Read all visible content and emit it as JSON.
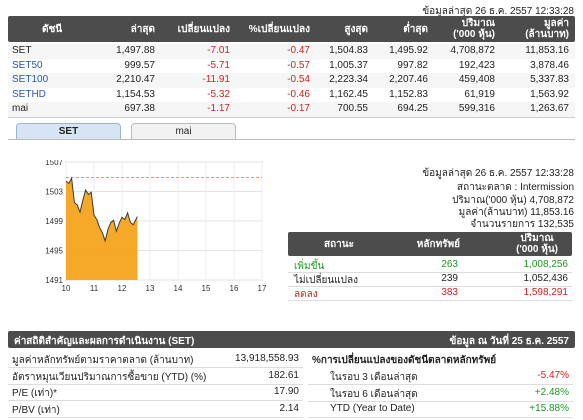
{
  "top_timestamp": "ข้อมูลล่าสุด 26 ธ.ค. 2557 12:33:28",
  "index_table": {
    "headers": [
      "ดัชนี",
      "ล่าสุด",
      "เปลี่ยนแปลง",
      "%เปลี่ยนแปลง",
      "สูงสุด",
      "ต่ำสุด",
      "ปริมาณ\n('000 หุ้น)",
      "มูลค่า\n(ล้านบาท)"
    ],
    "h_volume_1": "ปริมาณ",
    "h_volume_2": "('000 หุ้น)",
    "h_value_1": "มูลค่า",
    "h_value_2": "(ล้านบาท)",
    "rows": [
      {
        "name": "SET",
        "last": "1,497.88",
        "chg": "-7.01",
        "pct": "-0.47",
        "high": "1,504.83",
        "low": "1,495.92",
        "vol": "4,708,872",
        "val": "11,853.16"
      },
      {
        "name": "SET50",
        "last": "999.57",
        "chg": "-5.71",
        "pct": "-0.57",
        "high": "1,005.37",
        "low": "997.82",
        "vol": "192,423",
        "val": "3,878.46"
      },
      {
        "name": "SET100",
        "last": "2,210.47",
        "chg": "-11.91",
        "pct": "-0.54",
        "high": "2,223.34",
        "low": "2,207.46",
        "vol": "459,408",
        "val": "5,337.83"
      },
      {
        "name": "SETHD",
        "last": "1,154.53",
        "chg": "-5.32",
        "pct": "-0.46",
        "high": "1,162.45",
        "low": "1,152.83",
        "vol": "61,919",
        "val": "1,563.92"
      },
      {
        "name": "mai",
        "last": "697.38",
        "chg": "-1.17",
        "pct": "-0.17",
        "high": "700.55",
        "low": "694.25",
        "vol": "599,316",
        "val": "1,263.67"
      }
    ]
  },
  "tabs": {
    "set": "SET",
    "mai": "mai"
  },
  "chart_data": {
    "type": "area",
    "x_ticks": [
      "10",
      "11",
      "12",
      "13",
      "14",
      "15",
      "16",
      "17"
    ],
    "y_ticks": [
      "1507",
      "1503",
      "1499",
      "1495",
      "1491"
    ],
    "ylim": [
      1491,
      1507
    ],
    "reference_value": 1504.89,
    "series": [
      {
        "x": [
          10.0,
          10.1,
          10.2,
          10.3,
          10.4,
          10.5,
          10.6,
          10.7,
          10.8,
          10.9,
          11.0,
          11.1,
          11.2,
          11.3,
          11.4,
          11.5,
          11.6,
          11.7,
          11.8,
          11.9,
          12.0,
          12.1,
          12.2,
          12.3,
          12.4,
          12.55
        ],
        "y": [
          1504.4,
          1504.1,
          1504.8,
          1501.5,
          1501.2,
          1500.2,
          1501.8,
          1503.2,
          1502.6,
          1502.9,
          1499.8,
          1499.2,
          1498.1,
          1497.4,
          1496.3,
          1497.9,
          1498.8,
          1499.1,
          1497.6,
          1498.7,
          1499.5,
          1499.2,
          1500.1,
          1498.8,
          1498.5,
          1499.6
        ]
      }
    ]
  },
  "market_info": {
    "timestamp": "ข้อมูลล่าสุด 26 ธ.ค. 2557 12:33:28",
    "status": "สถานะตลาด : Intermission",
    "volume": "ปริมาณ('000 หุ้น) 4,708,872",
    "value": "มูลค่า(ล้านบาท) 11,853.16",
    "deals": "จำนวนรายการ 132,535"
  },
  "stats_table": {
    "h_status": "สถานะ",
    "h_securities": "หลักทรัพย์",
    "h_volume_1": "ปริมาณ",
    "h_volume_2": "('000 หุ้น)",
    "rows": [
      {
        "label": "เพิ่มขึ้น",
        "count": "263",
        "volume": "1,008,256"
      },
      {
        "label": "ไม่เปลี่ยนแปลง",
        "count": "239",
        "volume": "1,052,436"
      },
      {
        "label": "ลดลง",
        "count": "383",
        "volume": "1,598,291"
      }
    ]
  },
  "key_stats": {
    "title": "ค่าสถิติสำคัญและผลการดำเนินงาน (SET)",
    "date": "ข้อมูล ณ วันที่ 25 ธ.ค. 2557",
    "rows": [
      {
        "label": "มูลค่าหลักทรัพย์ตามราคาตลาด (ล้านบาท)",
        "value": "13,918,558.93"
      },
      {
        "label": "อัตราหมุนเวียนปริมาณการซื้อขาย (YTD) (%)",
        "value": "182.61"
      },
      {
        "label": "P/E (เท่า)*",
        "value": "17.90"
      },
      {
        "label": "P/BV (เท่า)",
        "value": "2.14"
      }
    ],
    "change_title": "%การเปลี่ยนแปลงของดัชนีตลาดหลักทรัพย์",
    "changes": [
      {
        "label": "ในรอบ 3 เดือนล่าสุด",
        "value": "-5.47%"
      },
      {
        "label": "ในรอบ 6 เดือนล่าสุด",
        "value": "+2.48%"
      },
      {
        "label": "YTD (Year to Date)",
        "value": "+15.88%"
      }
    ]
  },
  "colors": {
    "header": "#4c4c4c",
    "negative": "#d42020",
    "positive": "#1a9a1a",
    "chart_fill": "#f5a31e",
    "reference_line": "#f5a31e"
  }
}
